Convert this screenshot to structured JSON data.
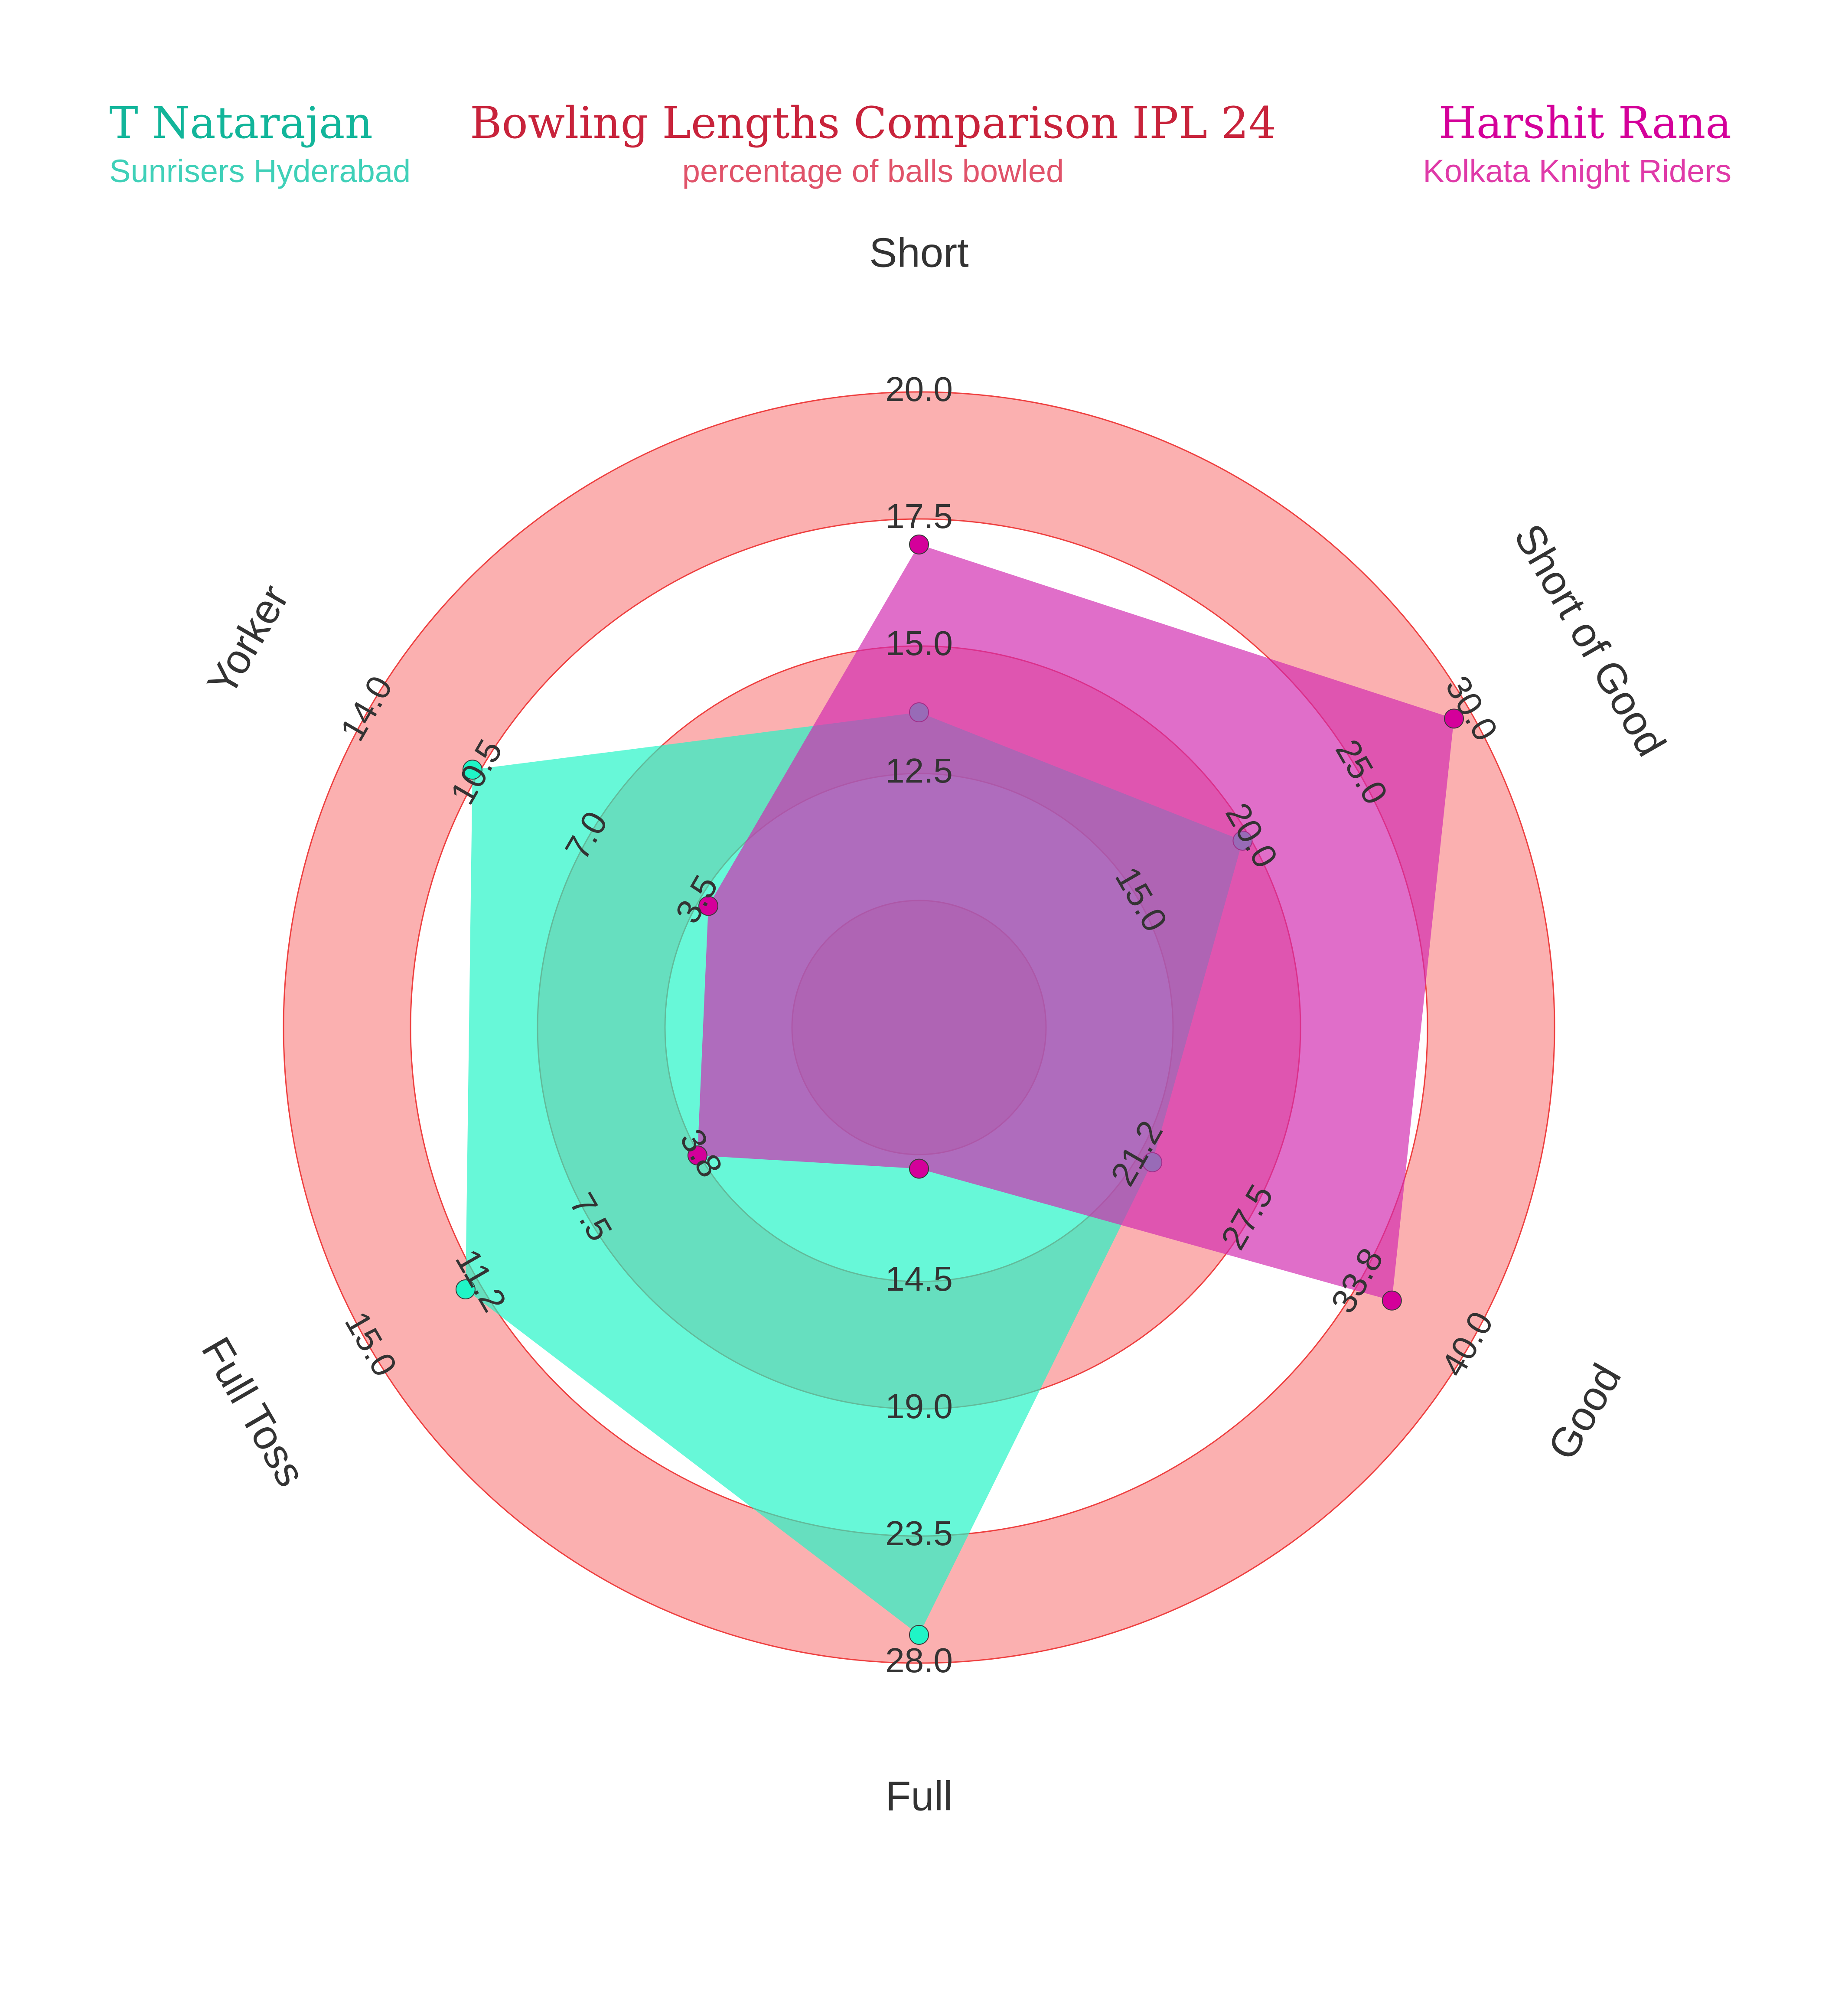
{
  "title": "Bowling Lengths Comparison IPL 24",
  "subtitle": "percentage of balls bowled",
  "players": {
    "left": {
      "name": "T Natarajan",
      "team": "Sunrisers Hyderabad",
      "color": "#12b59a",
      "team_color": "#3fd0b8"
    },
    "right": {
      "name": "Harshit Rana",
      "team": "Kolkata Knight Riders",
      "color": "#d4009a",
      "team_color": "#df3aa8"
    }
  },
  "colors": {
    "title": "#c8233b",
    "subtitle": "#e0536a",
    "ring_fill": "#fbb0b0",
    "ring_stroke": "#ee4040",
    "fill_left": "#1ff5c6",
    "fill_right": "#d12ab0",
    "text": "#333333"
  },
  "chart_data": {
    "type": "radar",
    "title": "Bowling Lengths Comparison IPL 24",
    "subtitle": "percentage of balls bowled",
    "axes": [
      "Short",
      "Short of Good",
      "Good",
      "Full",
      "Full Toss",
      "Yorker"
    ],
    "axis_ticks": [
      [
        "12.5",
        "15.0",
        "17.5",
        "20.0"
      ],
      [
        "15.0",
        "20.0",
        "25.0",
        "30.0"
      ],
      [
        "21.2",
        "27.5",
        "33.8",
        "40.0"
      ],
      [
        "14.5",
        "19.0",
        "23.5",
        "28.0"
      ],
      [
        "3.8",
        "7.5",
        "11.2",
        "15.0"
      ],
      [
        "3.5",
        "7.0",
        "10.5",
        "14.0"
      ]
    ],
    "axis_ranges": [
      [
        10.0,
        20.0
      ],
      [
        10.0,
        30.0
      ],
      [
        15.0,
        40.0
      ],
      [
        10.0,
        28.0
      ],
      [
        0.0,
        15.0
      ],
      [
        0.0,
        14.0
      ]
    ],
    "series": [
      {
        "name": "T Natarajan",
        "values": [
          13.7,
          19.7,
          22.0,
          27.0,
          11.7,
          10.7
        ]
      },
      {
        "name": "Harshit Rana",
        "values": [
          17.0,
          29.3,
          35.6,
          10.5,
          3.8,
          3.2
        ]
      }
    ]
  }
}
